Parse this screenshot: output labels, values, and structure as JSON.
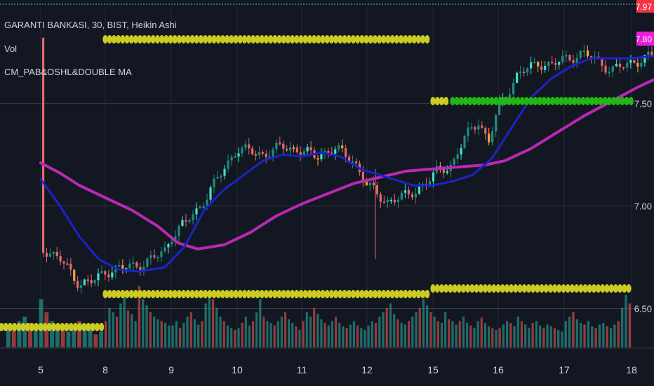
{
  "legend": {
    "symbol_title": "GARANTI BANKASI, 30, BIST, Heikin Ashi",
    "volume_label": "Vol",
    "indicator_label": "CM_PAB&OSHL&DOUBLE MA"
  },
  "price_axis": {
    "top_label": "7.97",
    "last_price_label": "7.80",
    "last_price_color": "#e91ed6",
    "top_label_color": "#f23645"
  },
  "colors": {
    "background": "#131722",
    "grid": "#363a45",
    "fast_ma": "#1a24c8",
    "slow_ma": "#b928b4",
    "yellow_dots": "#cbcb23",
    "green_dots": "#22b814",
    "candle_up_dark": "#1f8c7f",
    "candle_up_light": "#3fe0d0",
    "candle_down": "#e06a6a",
    "candle_warn": "#ff9f40",
    "volume_up": "#26a69a",
    "volume_down": "#ef5350"
  },
  "chart_data": {
    "type": "candlestick",
    "title": "GARANTI BANKASI, 30, BIST, Heikin Ashi",
    "x_ticks": [
      "5",
      "8",
      "9",
      "10",
      "11",
      "12",
      "15",
      "16",
      "17",
      "18"
    ],
    "y_ticks": [
      "6.50",
      "7.00",
      "7.50"
    ],
    "ylim": [
      6.31,
      7.97
    ],
    "last_price": 7.8,
    "grid": true,
    "series": [
      {
        "name": "Vol",
        "kind": "volume",
        "sessions": [
          {
            "day": "5",
            "values": [
              0.25,
              0.2,
              0.3,
              0.35,
              0.28,
              0.22,
              0.55,
              0.4,
              0.3,
              0.25,
              0.2,
              0.18,
              0.22,
              0.3,
              0.26,
              0.2,
              0.15,
              0.18
            ]
          },
          {
            "day": "8",
            "values": [
              0.3,
              0.45,
              0.4,
              0.35,
              0.5,
              0.6,
              0.42,
              0.38,
              0.3,
              0.7,
              0.55,
              0.48,
              0.4,
              0.35,
              0.32,
              0.3,
              0.28,
              0.25
            ]
          },
          {
            "day": "9",
            "values": [
              0.25,
              0.3,
              0.22,
              0.28,
              0.35,
              0.4,
              0.32,
              0.26,
              0.3,
              0.5,
              0.6,
              0.55,
              0.45,
              0.35,
              0.3,
              0.25,
              0.22,
              0.2
            ]
          },
          {
            "day": "10",
            "values": [
              0.22,
              0.28,
              0.35,
              0.25,
              0.3,
              0.4,
              0.55,
              0.35,
              0.3,
              0.28,
              0.25,
              0.3,
              0.35,
              0.4,
              0.32,
              0.28,
              0.24,
              0.2
            ]
          },
          {
            "day": "11",
            "values": [
              0.3,
              0.4,
              0.35,
              0.45,
              0.38,
              0.32,
              0.28,
              0.25,
              0.3,
              0.35,
              0.28,
              0.24,
              0.22,
              0.26,
              0.3,
              0.25,
              0.22,
              0.2
            ]
          },
          {
            "day": "12",
            "values": [
              0.25,
              0.3,
              0.28,
              0.35,
              0.4,
              0.45,
              0.5,
              0.38,
              0.32,
              0.28,
              0.26,
              0.3,
              0.35,
              0.4,
              0.45,
              0.55,
              0.48,
              0.4
            ]
          },
          {
            "day": "15",
            "values": [
              0.35,
              0.3,
              0.28,
              0.4,
              0.32,
              0.3,
              0.26,
              0.3,
              0.35,
              0.28,
              0.25,
              0.22,
              0.3,
              0.34,
              0.28,
              0.24,
              0.22,
              0.2
            ]
          },
          {
            "day": "16",
            "values": [
              0.22,
              0.26,
              0.3,
              0.28,
              0.24,
              0.35,
              0.3,
              0.26,
              0.22,
              0.28,
              0.3,
              0.25,
              0.22,
              0.26,
              0.24,
              0.22,
              0.2,
              0.18
            ]
          },
          {
            "day": "17",
            "values": [
              0.3,
              0.35,
              0.4,
              0.32,
              0.28,
              0.26,
              0.3,
              0.24,
              0.22,
              0.26,
              0.28,
              0.24,
              0.22,
              0.26,
              0.3,
              0.45,
              0.6,
              0.5
            ]
          }
        ]
      },
      {
        "name": "Heikin Ashi",
        "kind": "candles",
        "close_path": [
          {
            "x": 0.0,
            "y": 6.8
          },
          {
            "x": 0.3,
            "y": 6.74
          },
          {
            "x": 0.5,
            "y": 6.66
          },
          {
            "x": 0.6,
            "y": 6.62
          },
          {
            "x": 0.8,
            "y": 6.63
          },
          {
            "x": 1.0,
            "y": 6.68
          },
          {
            "x": 1.3,
            "y": 6.7
          },
          {
            "x": 1.6,
            "y": 6.72
          },
          {
            "x": 1.9,
            "y": 6.78
          },
          {
            "x": 2.0,
            "y": 6.85
          },
          {
            "x": 2.4,
            "y": 6.98
          },
          {
            "x": 2.8,
            "y": 7.18
          },
          {
            "x": 3.0,
            "y": 7.28
          },
          {
            "x": 3.4,
            "y": 7.25
          },
          {
            "x": 3.7,
            "y": 7.29
          },
          {
            "x": 4.0,
            "y": 7.27
          },
          {
            "x": 4.2,
            "y": 7.24
          },
          {
            "x": 4.5,
            "y": 7.28
          },
          {
            "x": 4.8,
            "y": 7.22
          },
          {
            "x": 5.0,
            "y": 7.1
          },
          {
            "x": 5.3,
            "y": 7.02
          },
          {
            "x": 5.6,
            "y": 7.05
          },
          {
            "x": 5.9,
            "y": 7.11
          },
          {
            "x": 6.1,
            "y": 7.18
          },
          {
            "x": 6.3,
            "y": 7.2
          },
          {
            "x": 6.5,
            "y": 7.34
          },
          {
            "x": 6.7,
            "y": 7.42
          },
          {
            "x": 6.85,
            "y": 7.3
          },
          {
            "x": 7.0,
            "y": 7.48
          },
          {
            "x": 7.3,
            "y": 7.64
          },
          {
            "x": 7.6,
            "y": 7.7
          },
          {
            "x": 7.8,
            "y": 7.68
          },
          {
            "x": 8.0,
            "y": 7.72
          },
          {
            "x": 8.3,
            "y": 7.74
          },
          {
            "x": 8.5,
            "y": 7.71
          },
          {
            "x": 8.7,
            "y": 7.66
          },
          {
            "x": 9.0,
            "y": 7.7
          },
          {
            "x": 9.3,
            "y": 7.73
          },
          {
            "x": 9.6,
            "y": 7.74
          },
          {
            "x": 9.8,
            "y": 7.8
          },
          {
            "x": 10.0,
            "y": 7.82
          }
        ]
      },
      {
        "name": "Fast MA",
        "kind": "line",
        "points": [
          {
            "x": 0.0,
            "y": 7.13
          },
          {
            "x": 0.3,
            "y": 7.0
          },
          {
            "x": 0.6,
            "y": 6.85
          },
          {
            "x": 0.9,
            "y": 6.74
          },
          {
            "x": 1.2,
            "y": 6.69
          },
          {
            "x": 1.5,
            "y": 6.68
          },
          {
            "x": 1.9,
            "y": 6.7
          },
          {
            "x": 2.2,
            "y": 6.8
          },
          {
            "x": 2.5,
            "y": 6.98
          },
          {
            "x": 2.8,
            "y": 7.08
          },
          {
            "x": 3.1,
            "y": 7.15
          },
          {
            "x": 3.4,
            "y": 7.22
          },
          {
            "x": 3.7,
            "y": 7.25
          },
          {
            "x": 4.0,
            "y": 7.24
          },
          {
            "x": 4.3,
            "y": 7.26
          },
          {
            "x": 4.6,
            "y": 7.24
          },
          {
            "x": 4.9,
            "y": 7.18
          },
          {
            "x": 5.3,
            "y": 7.14
          },
          {
            "x": 5.7,
            "y": 7.1
          },
          {
            "x": 6.0,
            "y": 7.1
          },
          {
            "x": 6.3,
            "y": 7.12
          },
          {
            "x": 6.6,
            "y": 7.15
          },
          {
            "x": 6.9,
            "y": 7.23
          },
          {
            "x": 7.2,
            "y": 7.38
          },
          {
            "x": 7.5,
            "y": 7.53
          },
          {
            "x": 7.8,
            "y": 7.62
          },
          {
            "x": 8.1,
            "y": 7.68
          },
          {
            "x": 8.4,
            "y": 7.72
          },
          {
            "x": 8.7,
            "y": 7.72
          },
          {
            "x": 9.0,
            "y": 7.72
          },
          {
            "x": 9.3,
            "y": 7.73
          },
          {
            "x": 9.6,
            "y": 7.74
          },
          {
            "x": 10.0,
            "y": 7.76
          }
        ]
      },
      {
        "name": "Slow MA",
        "kind": "line",
        "points": [
          {
            "x": 0.0,
            "y": 7.21
          },
          {
            "x": 0.3,
            "y": 7.16
          },
          {
            "x": 0.6,
            "y": 7.1
          },
          {
            "x": 1.0,
            "y": 7.04
          },
          {
            "x": 1.4,
            "y": 6.98
          },
          {
            "x": 1.8,
            "y": 6.9
          },
          {
            "x": 2.1,
            "y": 6.82
          },
          {
            "x": 2.4,
            "y": 6.79
          },
          {
            "x": 2.8,
            "y": 6.81
          },
          {
            "x": 3.2,
            "y": 6.87
          },
          {
            "x": 3.6,
            "y": 6.95
          },
          {
            "x": 4.0,
            "y": 7.01
          },
          {
            "x": 4.4,
            "y": 7.06
          },
          {
            "x": 4.8,
            "y": 7.11
          },
          {
            "x": 5.2,
            "y": 7.14
          },
          {
            "x": 5.6,
            "y": 7.17
          },
          {
            "x": 6.0,
            "y": 7.18
          },
          {
            "x": 6.4,
            "y": 7.19
          },
          {
            "x": 6.8,
            "y": 7.2
          },
          {
            "x": 7.1,
            "y": 7.22
          },
          {
            "x": 7.5,
            "y": 7.28
          },
          {
            "x": 7.9,
            "y": 7.36
          },
          {
            "x": 8.3,
            "y": 7.44
          },
          {
            "x": 8.7,
            "y": 7.51
          },
          {
            "x": 9.1,
            "y": 7.58
          },
          {
            "x": 9.5,
            "y": 7.64
          },
          {
            "x": 10.0,
            "y": 7.71
          }
        ]
      },
      {
        "name": "Session High",
        "kind": "dots",
        "color": "yellow",
        "segments": [
          {
            "x_start": 0.0,
            "x_end": 0.9,
            "y": 7.81
          },
          {
            "x_start": 1.0,
            "x_end": 6.0,
            "y": 7.81
          },
          {
            "x_start": 6.0,
            "x_end": 7.0,
            "y": 7.5
          }
        ]
      },
      {
        "name": "Session Low",
        "kind": "dots",
        "color": "yellow",
        "segments": [
          {
            "x_start": 0.0,
            "x_end": 1.0,
            "y": 6.42
          },
          {
            "x_start": 1.0,
            "x_end": 6.0,
            "y": 6.55
          },
          {
            "x_start": 6.0,
            "x_end": 10.0,
            "y": 6.58
          }
        ]
      },
      {
        "name": "Support Line",
        "kind": "dots",
        "color": "green",
        "segments": [
          {
            "x_start": 6.3,
            "x_end": 10.0,
            "y": 7.5
          }
        ]
      }
    ]
  }
}
